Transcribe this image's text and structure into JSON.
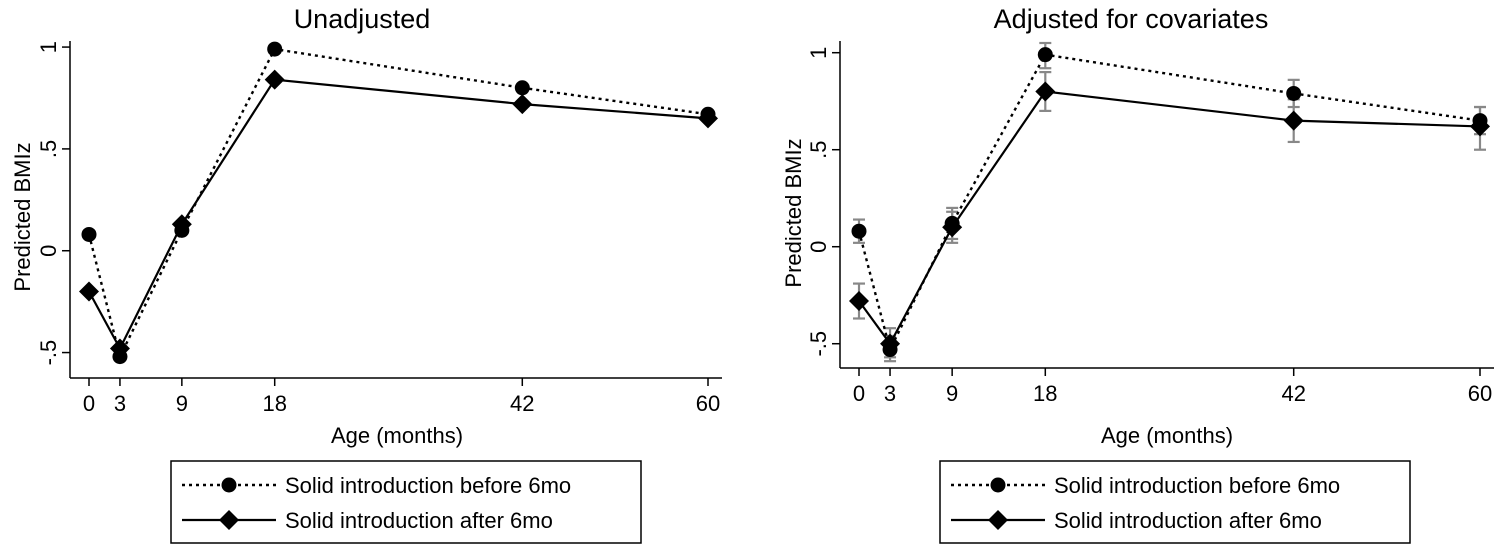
{
  "chart_data": [
    {
      "type": "line",
      "title": "Unadjusted",
      "xlabel": "Age (months)",
      "ylabel": "Predicted BMIz",
      "x": [
        0,
        3,
        9,
        18,
        42,
        60
      ],
      "x_ticks": [
        "0",
        "3",
        "9",
        "18",
        "42",
        "60"
      ],
      "y_ticks": [
        {
          "value": -0.5,
          "label": "-.5"
        },
        {
          "value": 0,
          "label": "0"
        },
        {
          "value": 0.5,
          "label": ".5"
        },
        {
          "value": 1,
          "label": "1"
        }
      ],
      "ylim": [
        -0.62,
        1.02
      ],
      "xlim": [
        -1.2,
        61.2
      ],
      "grid": false,
      "legend_position": "bottom",
      "series": [
        {
          "name": "Solid introduction before 6mo",
          "line": "dotted",
          "marker": "circle",
          "values": [
            0.08,
            -0.52,
            0.1,
            0.99,
            0.8,
            0.67
          ]
        },
        {
          "name": "Solid introduction after 6mo",
          "line": "solid",
          "marker": "diamond",
          "values": [
            -0.2,
            -0.48,
            0.13,
            0.84,
            0.72,
            0.65
          ]
        }
      ]
    },
    {
      "type": "line",
      "title": "Adjusted for covariates",
      "xlabel": "Age (months)",
      "ylabel": "Predicted BMIz",
      "x": [
        0,
        3,
        9,
        18,
        42,
        60
      ],
      "x_ticks": [
        "0",
        "3",
        "9",
        "18",
        "42",
        "60"
      ],
      "y_ticks": [
        {
          "value": -0.5,
          "label": "-.5"
        },
        {
          "value": 0,
          "label": "0"
        },
        {
          "value": 0.5,
          "label": ".5"
        },
        {
          "value": 1,
          "label": "1"
        }
      ],
      "ylim": [
        -0.62,
        1.05
      ],
      "xlim": [
        -1.2,
        61.2
      ],
      "grid": false,
      "legend_position": "bottom",
      "error_bars": true,
      "series": [
        {
          "name": "Solid introduction before 6mo",
          "line": "dotted",
          "marker": "circle",
          "values": [
            0.08,
            -0.53,
            0.12,
            0.99,
            0.79,
            0.65
          ],
          "ci_low": [
            0.02,
            -0.59,
            0.04,
            0.92,
            0.72,
            0.58
          ],
          "ci_high": [
            0.14,
            -0.46,
            0.2,
            1.05,
            0.86,
            0.72
          ]
        },
        {
          "name": "Solid introduction after 6mo",
          "line": "solid",
          "marker": "diamond",
          "values": [
            -0.28,
            -0.5,
            0.1,
            0.8,
            0.65,
            0.62
          ],
          "ci_low": [
            -0.37,
            -0.57,
            0.02,
            0.7,
            0.54,
            0.5
          ],
          "ci_high": [
            -0.19,
            -0.42,
            0.18,
            0.9,
            0.76,
            0.72
          ]
        }
      ]
    }
  ]
}
